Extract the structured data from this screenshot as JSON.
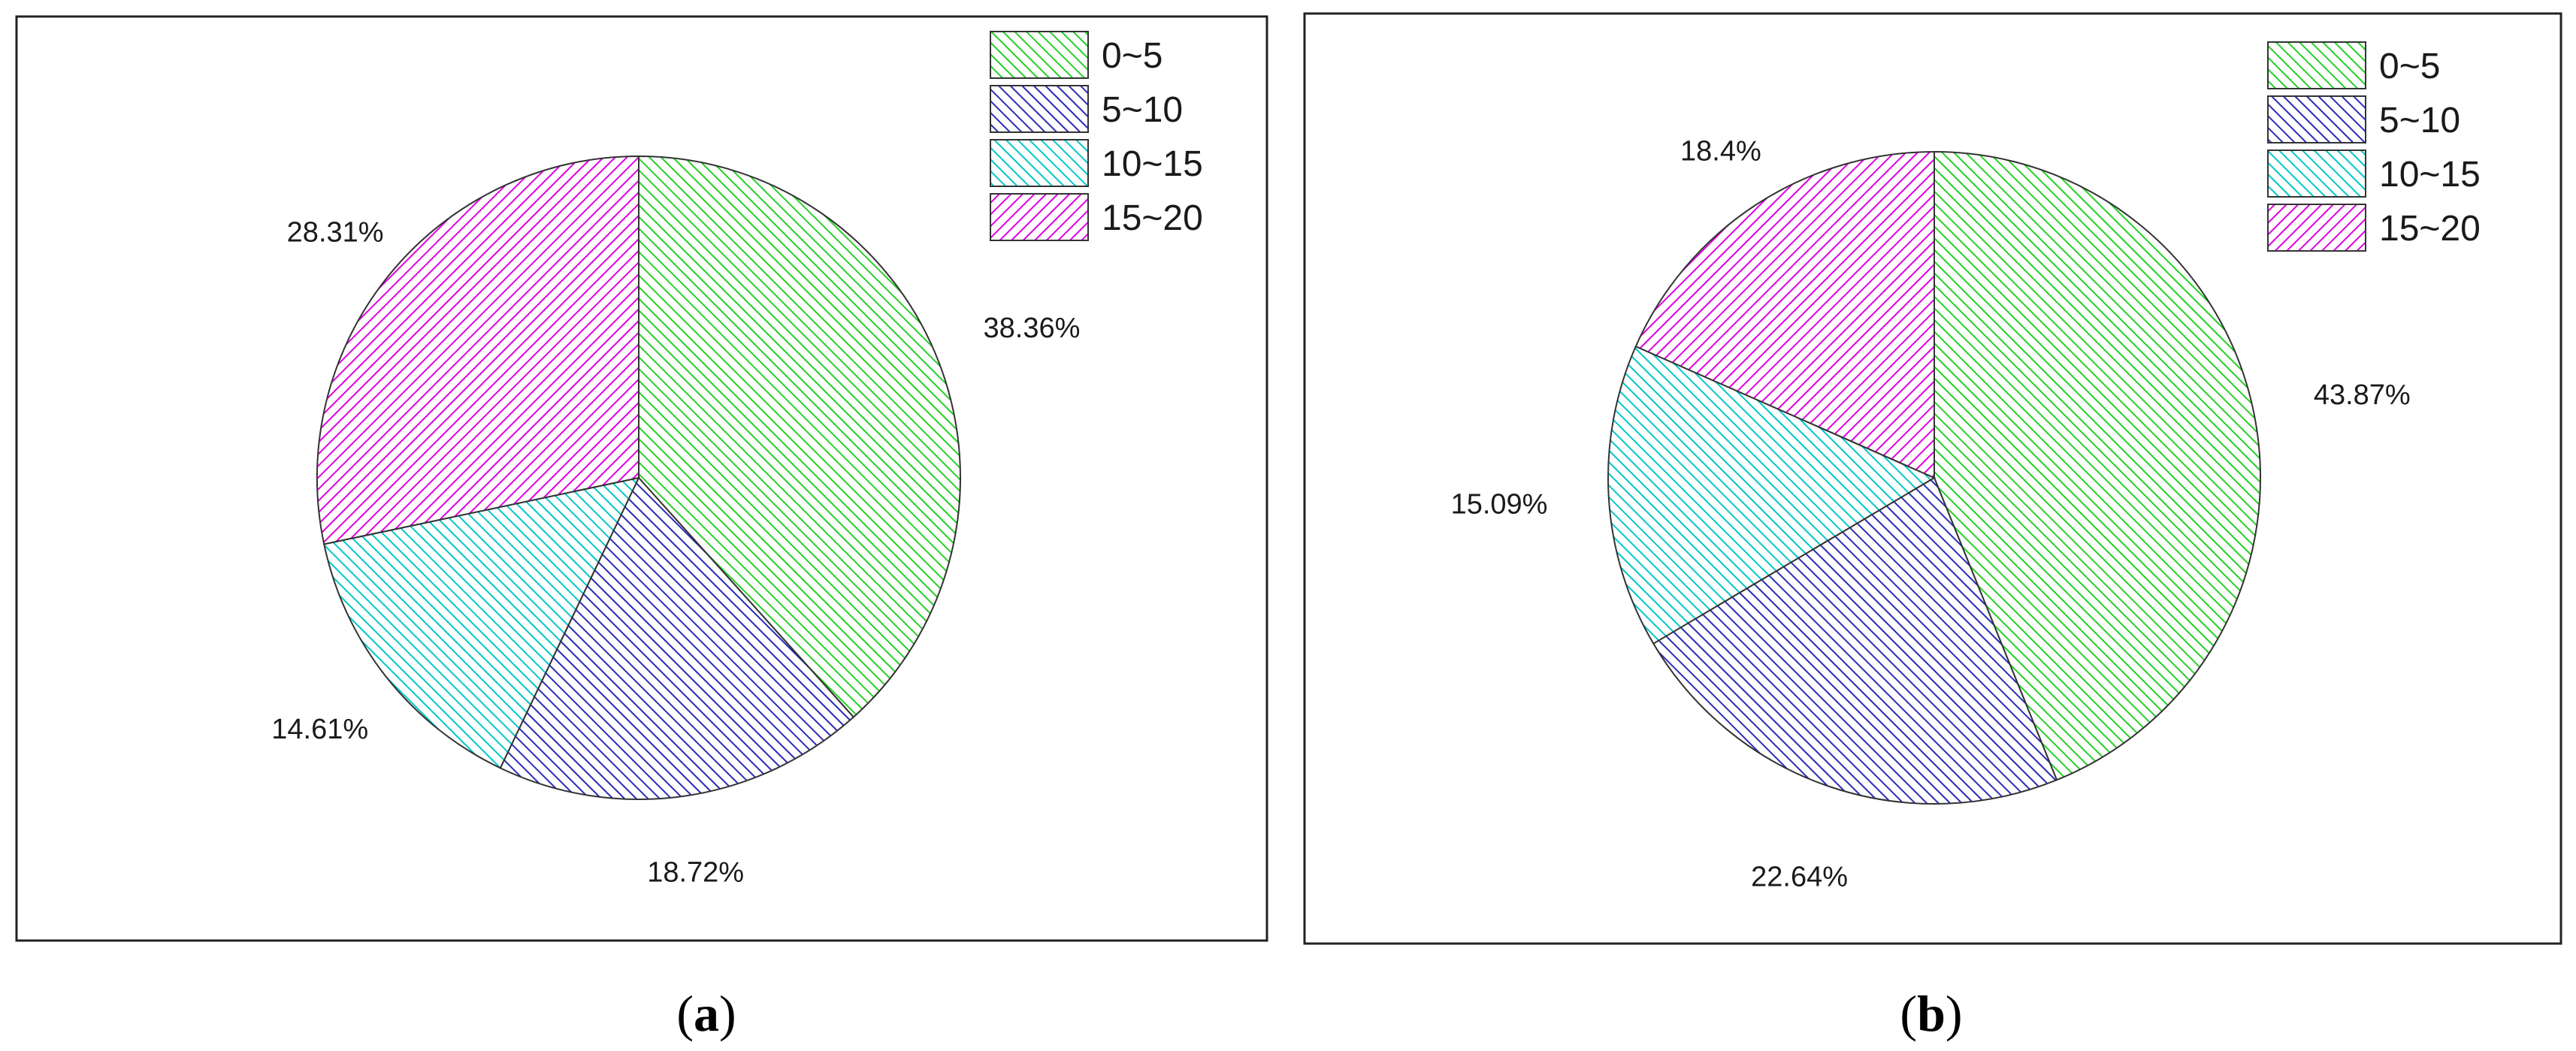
{
  "chart_data": [
    {
      "type": "pie",
      "caption": "a",
      "categories": [
        "0~5",
        "5~10",
        "10~15",
        "15~20"
      ],
      "values": [
        38.36,
        18.72,
        14.61,
        28.31
      ],
      "labels": [
        "38.36%",
        "18.72%",
        "14.61%",
        "28.31%"
      ],
      "legend_position": "top-right",
      "start_angle": "12 o'clock",
      "direction": "clockwise"
    },
    {
      "type": "pie",
      "caption": "b",
      "categories": [
        "0~5",
        "5~10",
        "10~15",
        "15~20"
      ],
      "values": [
        43.87,
        22.64,
        15.09,
        18.4
      ],
      "labels": [
        "43.87%",
        "22.64%",
        "15.09%",
        "18.4%"
      ],
      "legend_position": "top-right",
      "start_angle": "12 o'clock",
      "direction": "clockwise"
    }
  ],
  "styles": {
    "colors": [
      "#26d026",
      "#2b2bb8",
      "#00c8c8",
      "#e000e0"
    ],
    "hatch_direction": [
      "rising",
      "rising",
      "rising",
      "falling"
    ]
  }
}
